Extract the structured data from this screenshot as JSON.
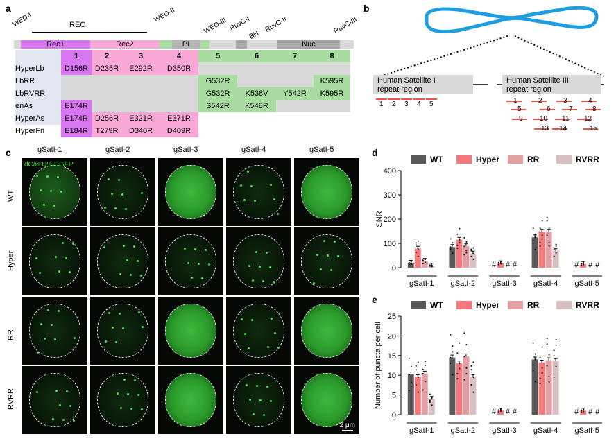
{
  "panels": {
    "a": "a",
    "b": "b",
    "c": "c",
    "d": "d",
    "e": "e"
  },
  "panel_a": {
    "domains_top": [
      "WED-I",
      "WED-II",
      "WED-III",
      "RuvC-I",
      "BH",
      "RuvC-II",
      "RuvC-III"
    ],
    "rec_label": "REC",
    "rec1": "Rec1",
    "rec2": "Rec2",
    "pi": "PI",
    "nuc": "Nuc",
    "bins": [
      "1",
      "2",
      "3",
      "4",
      "5",
      "6",
      "7",
      "8"
    ],
    "rows": [
      {
        "name": "HyperLb",
        "cells": [
          "D156R",
          "D235R",
          "E292R",
          "D350R",
          "",
          "",
          "",
          ""
        ]
      },
      {
        "name": "LbRR",
        "cells": [
          "",
          "",
          "",
          "",
          "G532R",
          "",
          "",
          "K595R"
        ]
      },
      {
        "name": "LbRVRR",
        "cells": [
          "",
          "",
          "",
          "",
          "G532R",
          "K538V",
          "Y542R",
          "K595R"
        ]
      },
      {
        "name": "enAs",
        "cells": [
          "E174R",
          "",
          "",
          "",
          "S542R",
          "K548R",
          "",
          ""
        ]
      },
      {
        "name": "HyperAs",
        "cells": [
          "E174R",
          "D256R",
          "E321R",
          "E371R",
          "",
          "",
          "",
          ""
        ]
      },
      {
        "name": "HyperFn",
        "cells": [
          "E184R",
          "T279R",
          "D340R",
          "D409R",
          "",
          "",
          "",
          ""
        ]
      }
    ],
    "colors": {
      "rec1": "#d875f0",
      "rec2": "#f9a8d8",
      "green": "#a8dca0",
      "gray": "#d9d9d9",
      "pi": "#b6b6b6",
      "nuc": "#a6a6a6"
    }
  },
  "panel_b": {
    "sat1_title": "Human Satellite I\nrepeat region",
    "sat3_title": "Human Satellite III\nrepeat region",
    "sat1_labels": [
      "1",
      "2",
      "3",
      "4",
      "5"
    ],
    "sat3_labels": [
      "1",
      "2",
      "3",
      "4",
      "5",
      "6",
      "7",
      "8",
      "9",
      "10",
      "11",
      "12",
      "13",
      "14",
      "15"
    ]
  },
  "panel_c": {
    "columns": [
      "gSatI-1",
      "gSatI-2",
      "gSatI-3",
      "gSatI-4",
      "gSatI-5"
    ],
    "rows": [
      "WT",
      "Hyper",
      "RR",
      "RVRR"
    ],
    "overlay": "dCas12a-EGFP",
    "scale": "2 μm",
    "bright": [
      [
        false,
        false,
        true,
        false,
        true
      ],
      [
        false,
        false,
        false,
        false,
        false
      ],
      [
        false,
        false,
        true,
        false,
        true
      ],
      [
        false,
        false,
        true,
        false,
        true
      ]
    ]
  },
  "chart_data": [
    {
      "panel": "d",
      "type": "bar",
      "ylabel": "SNR",
      "ylim": [
        0,
        400
      ],
      "yticks": [
        0,
        100,
        200,
        300,
        400
      ],
      "categories": [
        "gSatI-1",
        "gSatI-2",
        "gSatI-3",
        "gSatI-4",
        "gSatI-5"
      ],
      "legend": "top",
      "series": [
        {
          "name": "WT",
          "color": "#595959",
          "values": [
            20,
            85,
            null,
            125,
            null
          ]
        },
        {
          "name": "Hyper",
          "color": "#f4787c",
          "values": [
            78,
            115,
            18,
            148,
            15
          ]
        },
        {
          "name": "RR",
          "color": "#e2a0a2",
          "values": [
            28,
            88,
            null,
            148,
            null
          ]
        },
        {
          "name": "RVRR",
          "color": "#d8bfc1",
          "values": [
            8,
            58,
            null,
            68,
            null
          ]
        }
      ],
      "missing_marker": "#"
    },
    {
      "panel": "e",
      "type": "bar",
      "ylabel": "Number of puncta per cell",
      "ylim": [
        0,
        25
      ],
      "yticks": [
        0,
        5,
        10,
        15,
        20,
        25
      ],
      "categories": [
        "gSatI-1",
        "gSatI-2",
        "gSatI-3",
        "gSatI-4",
        "gSatI-5"
      ],
      "legend": "top",
      "series": [
        {
          "name": "WT",
          "color": "#595959",
          "values": [
            10.2,
            14.5,
            null,
            14.0,
            null
          ]
        },
        {
          "name": "Hyper",
          "color": "#f4787c",
          "values": [
            9.5,
            13.0,
            1.0,
            13.2,
            1.0
          ]
        },
        {
          "name": "RR",
          "color": "#e2a0a2",
          "values": [
            10.4,
            14.8,
            null,
            13.8,
            null
          ]
        },
        {
          "name": "RVRR",
          "color": "#d8bfc1",
          "values": [
            4.0,
            9.5,
            null,
            13.6,
            null
          ]
        }
      ],
      "missing_marker": "#"
    }
  ]
}
